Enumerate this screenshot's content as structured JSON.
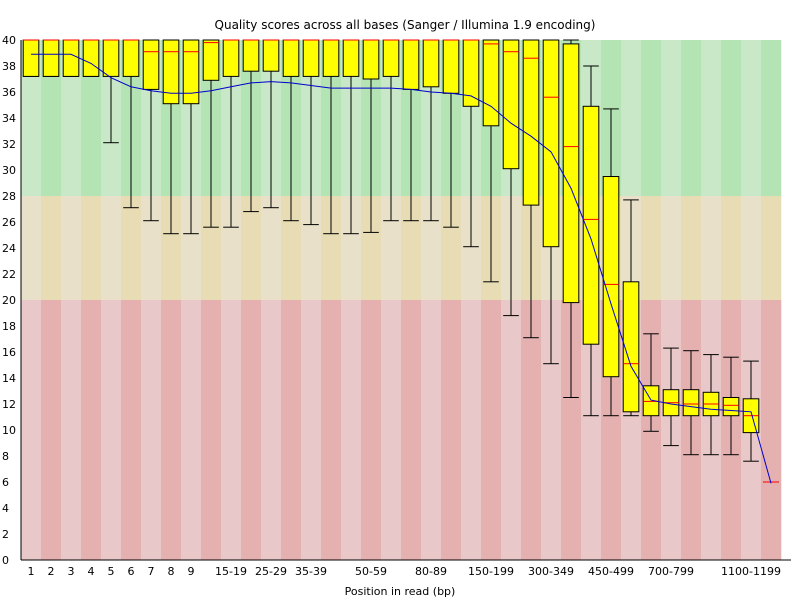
{
  "chart_data": {
    "type": "boxplot",
    "title": "Quality scores across all bases (Sanger / Illumina 1.9 encoding)",
    "xlabel": "Position in read (bp)",
    "ylabel": "",
    "ylim": [
      0,
      40
    ],
    "yticks": [
      0,
      2,
      4,
      6,
      8,
      10,
      12,
      14,
      16,
      18,
      20,
      22,
      24,
      26,
      28,
      30,
      32,
      34,
      36,
      38,
      40
    ],
    "zones": [
      {
        "from": 28,
        "to": 40,
        "color_a": "#b4e4b4",
        "color_b": "#c8e8c8"
      },
      {
        "from": 20,
        "to": 28,
        "color_a": "#e8dcb4",
        "color_b": "#e8e0c8"
      },
      {
        "from": 0,
        "to": 20,
        "color_a": "#e4b0b0",
        "color_b": "#e8c8c8"
      }
    ],
    "colors": {
      "box": "#ffff00",
      "box_stroke": "#000000",
      "median": "#ff0000",
      "mean_line": "#0000cc"
    },
    "categories": [
      "1",
      "2",
      "3",
      "4",
      "5",
      "6",
      "7",
      "8",
      "9",
      "10-14",
      "15-19",
      "20-24",
      "25-29",
      "30-34",
      "35-39",
      "40-44",
      "45-49",
      "50-59",
      "60-69",
      "70-79",
      "80-89",
      "90-99",
      "100-149",
      "150-199",
      "200-249",
      "250-299",
      "300-349",
      "350-399",
      "400-449",
      "450-499",
      "500-599",
      "600-699",
      "700-799",
      "800-899",
      "900-999",
      "1000-1099",
      "1100-1199",
      "1200-1299"
    ],
    "shown_x_labels": [
      "1",
      "2",
      "3",
      "4",
      "5",
      "6",
      "7",
      "8",
      "9",
      "15-19",
      "25-29",
      "35-39",
      "50-59",
      "80-89",
      "150-199",
      "300-349",
      "450-499",
      "700-799",
      "1100-1199"
    ],
    "boxes": [
      {
        "q1": 37.2,
        "median": 40,
        "q3": 40,
        "low": 37.2,
        "high": 40
      },
      {
        "q1": 37.2,
        "median": 40,
        "q3": 40,
        "low": 37.2,
        "high": 40
      },
      {
        "q1": 37.2,
        "median": 40,
        "q3": 40,
        "low": 37.2,
        "high": 40
      },
      {
        "q1": 37.2,
        "median": 40,
        "q3": 40,
        "low": 37.2,
        "high": 40
      },
      {
        "q1": 37.2,
        "median": 40,
        "q3": 40,
        "low": 32.1,
        "high": 40
      },
      {
        "q1": 37.2,
        "median": 40,
        "q3": 40,
        "low": 27.1,
        "high": 40
      },
      {
        "q1": 36.2,
        "median": 39.1,
        "q3": 40,
        "low": 26.1,
        "high": 40
      },
      {
        "q1": 35.1,
        "median": 39.1,
        "q3": 40,
        "low": 25.1,
        "high": 40
      },
      {
        "q1": 35.1,
        "median": 39.1,
        "q3": 40,
        "low": 25.1,
        "high": 40
      },
      {
        "q1": 36.9,
        "median": 39.8,
        "q3": 40,
        "low": 25.6,
        "high": 40
      },
      {
        "q1": 37.2,
        "median": 40,
        "q3": 40,
        "low": 25.6,
        "high": 40
      },
      {
        "q1": 37.6,
        "median": 40,
        "q3": 40,
        "low": 26.8,
        "high": 40
      },
      {
        "q1": 37.6,
        "median": 40,
        "q3": 40,
        "low": 27.1,
        "high": 40
      },
      {
        "q1": 37.2,
        "median": 40,
        "q3": 40,
        "low": 26.1,
        "high": 40
      },
      {
        "q1": 37.2,
        "median": 40,
        "q3": 40,
        "low": 25.8,
        "high": 40
      },
      {
        "q1": 37.2,
        "median": 40,
        "q3": 40,
        "low": 25.1,
        "high": 40
      },
      {
        "q1": 37.2,
        "median": 40,
        "q3": 40,
        "low": 25.1,
        "high": 40
      },
      {
        "q1": 37.0,
        "median": 40,
        "q3": 40,
        "low": 25.2,
        "high": 40
      },
      {
        "q1": 37.2,
        "median": 40,
        "q3": 40,
        "low": 26.1,
        "high": 40
      },
      {
        "q1": 36.2,
        "median": 40,
        "q3": 40,
        "low": 26.1,
        "high": 40
      },
      {
        "q1": 36.4,
        "median": 40,
        "q3": 40,
        "low": 26.1,
        "high": 40
      },
      {
        "q1": 35.9,
        "median": 40,
        "q3": 40,
        "low": 25.6,
        "high": 40
      },
      {
        "q1": 34.9,
        "median": 40,
        "q3": 40,
        "low": 24.1,
        "high": 40
      },
      {
        "q1": 33.4,
        "median": 39.7,
        "q3": 40,
        "low": 21.4,
        "high": 40
      },
      {
        "q1": 30.1,
        "median": 39.1,
        "q3": 40,
        "low": 18.8,
        "high": 40
      },
      {
        "q1": 27.3,
        "median": 38.6,
        "q3": 40,
        "low": 17.1,
        "high": 40
      },
      {
        "q1": 24.1,
        "median": 35.6,
        "q3": 40,
        "low": 15.1,
        "high": 40
      },
      {
        "q1": 19.8,
        "median": 31.8,
        "q3": 39.7,
        "low": 12.5,
        "high": 40
      },
      {
        "q1": 16.6,
        "median": 26.2,
        "q3": 34.9,
        "low": 11.1,
        "high": 38.0
      },
      {
        "q1": 14.1,
        "median": 21.2,
        "q3": 29.5,
        "low": 11.1,
        "high": 34.7
      },
      {
        "q1": 11.4,
        "median": 15.1,
        "q3": 21.4,
        "low": 11.1,
        "high": 27.7
      },
      {
        "q1": 11.1,
        "median": 12.2,
        "q3": 13.4,
        "low": 9.9,
        "high": 17.4
      },
      {
        "q1": 11.1,
        "median": 12.1,
        "q3": 13.1,
        "low": 8.8,
        "high": 16.3
      },
      {
        "q1": 11.1,
        "median": 12.0,
        "q3": 13.1,
        "low": 8.1,
        "high": 16.1
      },
      {
        "q1": 11.1,
        "median": 12.0,
        "q3": 12.9,
        "low": 8.1,
        "high": 15.8
      },
      {
        "q1": 11.1,
        "median": 11.9,
        "q3": 12.5,
        "low": 8.1,
        "high": 15.6
      },
      {
        "q1": 9.8,
        "median": 11.1,
        "q3": 12.4,
        "low": 7.6,
        "high": 15.3
      },
      {
        "q1": 6.0,
        "median": 6.0,
        "q3": 6.0,
        "low": 6.0,
        "high": 6.0
      }
    ],
    "mean": [
      38.9,
      38.9,
      38.9,
      38.2,
      37.1,
      36.4,
      36.1,
      35.9,
      35.9,
      36.1,
      36.4,
      36.7,
      36.8,
      36.7,
      36.5,
      36.3,
      36.3,
      36.3,
      36.3,
      36.2,
      36.0,
      35.9,
      35.7,
      34.9,
      33.6,
      32.6,
      31.4,
      28.6,
      24.7,
      19.7,
      14.9,
      12.3,
      12.0,
      11.8,
      11.6,
      11.5,
      11.4,
      5.9
    ]
  }
}
